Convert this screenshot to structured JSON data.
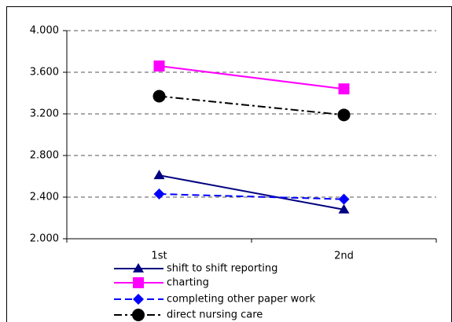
{
  "chart_data": {
    "type": "line",
    "categories": [
      "1st",
      "2nd"
    ],
    "series": [
      {
        "name": "shift to shift reporting",
        "color": "#000080",
        "marker": "triangle",
        "dash": "solid",
        "values": [
          2.61,
          2.28
        ]
      },
      {
        "name": "charting",
        "color": "#ff00ff",
        "marker": "square",
        "dash": "solid",
        "values": [
          3.66,
          3.44
        ]
      },
      {
        "name": "completing other paper work",
        "color": "#0000ff",
        "marker": "diamond",
        "dash": "dashed",
        "values": [
          2.43,
          2.38
        ]
      },
      {
        "name": "direct nursing care",
        "color": "#000000",
        "marker": "circle",
        "dash": "dashdot",
        "values": [
          3.37,
          3.19
        ]
      }
    ],
    "ylim": [
      2,
      4
    ],
    "yticks": [
      {
        "value": 2,
        "label": "2.000"
      },
      {
        "value": 2.4,
        "label": "2.400"
      },
      {
        "value": 2.8,
        "label": "2.800"
      },
      {
        "value": 3.2,
        "label": "3.200"
      },
      {
        "value": 3.6,
        "label": "3.600"
      },
      {
        "value": 4,
        "label": "4.000"
      }
    ],
    "grid": true,
    "legend": "bottom"
  }
}
